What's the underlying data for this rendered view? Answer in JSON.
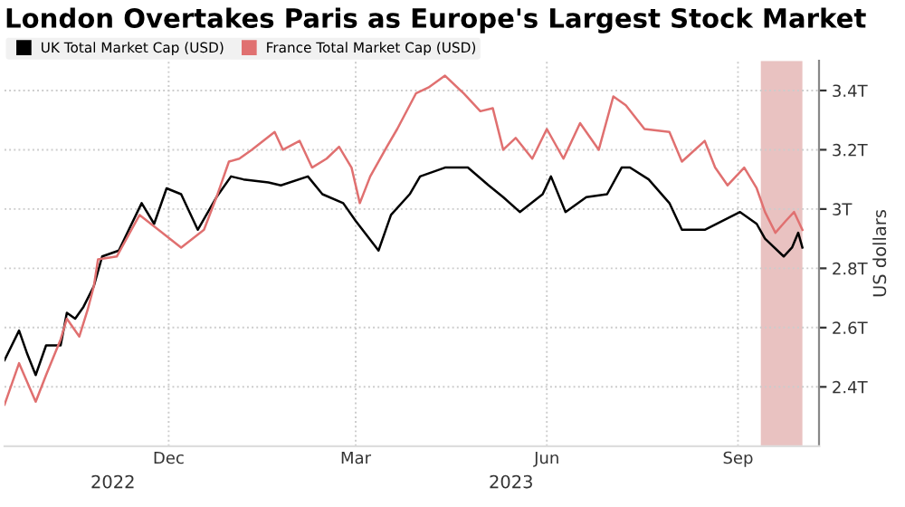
{
  "chart_data": {
    "type": "line",
    "title": "London Overtakes Paris as Europe's Largest Stock Market",
    "ylabel": "US dollars",
    "annotations": [
      "2022",
      "2023"
    ],
    "xlim": [
      "2022-09-13",
      "2023-10-10"
    ],
    "xticks": [
      {
        "value": "2022-12-01",
        "label": "Dec"
      },
      {
        "value": "2023-03-01",
        "label": "Mar"
      },
      {
        "value": "2023-06-01",
        "label": "Jun"
      },
      {
        "value": "2023-09-01",
        "label": "Sep"
      }
    ],
    "ylim": [
      2.2,
      3.5
    ],
    "yticks": [
      {
        "value": 2.4,
        "label": "2.4T"
      },
      {
        "value": 2.6,
        "label": "2.6T"
      },
      {
        "value": 2.8,
        "label": "2.8T"
      },
      {
        "value": 3.0,
        "label": "3T"
      },
      {
        "value": 3.2,
        "label": "3.2T"
      },
      {
        "value": 3.4,
        "label": "3.4T"
      }
    ],
    "grid": true,
    "legend": "top left",
    "marker": "none",
    "line_style": "solid",
    "bands": [
      {
        "axis": "x",
        "from": "2023-09-12",
        "to": "2023-10-02",
        "color": "#c0504d"
      }
    ],
    "series": [
      {
        "name": "UK Total Market Cap (USD)",
        "color": "#000000",
        "x": [
          "2022-09-13",
          "2022-09-20",
          "2022-09-24",
          "2022-09-28",
          "2022-10-03",
          "2022-10-10",
          "2022-10-13",
          "2022-10-17",
          "2022-10-21",
          "2022-10-26",
          "2022-10-30",
          "2022-11-07",
          "2022-11-18",
          "2022-11-24",
          "2022-11-30",
          "2022-12-07",
          "2022-12-15",
          "2022-12-24",
          "2022-12-31",
          "2023-01-06",
          "2023-01-18",
          "2023-01-24",
          "2023-02-06",
          "2023-02-13",
          "2023-02-23",
          "2023-03-01",
          "2023-03-12",
          "2023-03-18",
          "2023-03-27",
          "2023-04-01",
          "2023-04-13",
          "2023-04-24",
          "2023-05-04",
          "2023-05-11",
          "2023-05-19",
          "2023-05-30",
          "2023-06-03",
          "2023-06-10",
          "2023-06-20",
          "2023-06-30",
          "2023-07-07",
          "2023-07-11",
          "2023-07-20",
          "2023-07-30",
          "2023-08-05",
          "2023-08-16",
          "2023-09-02",
          "2023-09-10",
          "2023-09-14",
          "2023-09-23",
          "2023-09-27",
          "2023-09-30",
          "2023-10-02"
        ],
        "values": [
          2.49,
          2.59,
          2.51,
          2.44,
          2.54,
          2.54,
          2.65,
          2.63,
          2.67,
          2.74,
          2.84,
          2.86,
          3.02,
          2.95,
          3.07,
          3.05,
          2.93,
          3.04,
          3.11,
          3.1,
          3.09,
          3.08,
          3.11,
          3.05,
          3.02,
          2.96,
          2.86,
          2.98,
          3.05,
          3.11,
          3.14,
          3.14,
          3.08,
          3.04,
          2.99,
          3.05,
          3.11,
          2.99,
          3.04,
          3.05,
          3.14,
          3.14,
          3.1,
          3.02,
          2.93,
          2.93,
          2.99,
          2.95,
          2.9,
          2.84,
          2.87,
          2.92,
          2.87
        ]
      },
      {
        "name": "France Total Market Cap (USD)",
        "color": "#e07070",
        "x": [
          "2022-09-13",
          "2022-09-20",
          "2022-09-28",
          "2022-10-03",
          "2022-10-10",
          "2022-10-13",
          "2022-10-19",
          "2022-10-23",
          "2022-10-26",
          "2022-10-28",
          "2022-11-06",
          "2022-11-17",
          "2022-12-07",
          "2022-12-18",
          "2022-12-24",
          "2022-12-30",
          "2023-01-04",
          "2023-01-10",
          "2023-01-21",
          "2023-01-25",
          "2023-02-02",
          "2023-02-08",
          "2023-02-15",
          "2023-02-21",
          "2023-02-27",
          "2023-03-03",
          "2023-03-08",
          "2023-03-16",
          "2023-03-21",
          "2023-03-30",
          "2023-04-05",
          "2023-04-13",
          "2023-04-22",
          "2023-04-30",
          "2023-05-06",
          "2023-05-11",
          "2023-05-17",
          "2023-05-25",
          "2023-06-01",
          "2023-06-09",
          "2023-06-17",
          "2023-06-26",
          "2023-07-03",
          "2023-07-09",
          "2023-07-18",
          "2023-07-30",
          "2023-08-05",
          "2023-08-16",
          "2023-08-21",
          "2023-08-27",
          "2023-09-04",
          "2023-09-10",
          "2023-09-14",
          "2023-09-19",
          "2023-09-24",
          "2023-09-28",
          "2023-10-02"
        ],
        "values": [
          2.34,
          2.48,
          2.35,
          2.44,
          2.56,
          2.63,
          2.57,
          2.66,
          2.74,
          2.83,
          2.84,
          2.98,
          2.87,
          2.93,
          3.04,
          3.16,
          3.17,
          3.2,
          3.26,
          3.2,
          3.23,
          3.14,
          3.17,
          3.21,
          3.14,
          3.02,
          3.11,
          3.21,
          3.27,
          3.39,
          3.41,
          3.45,
          3.39,
          3.33,
          3.34,
          3.2,
          3.24,
          3.17,
          3.27,
          3.17,
          3.29,
          3.2,
          3.38,
          3.35,
          3.27,
          3.26,
          3.16,
          3.23,
          3.14,
          3.08,
          3.14,
          3.07,
          2.99,
          2.92,
          2.96,
          2.99,
          2.93
        ]
      }
    ]
  }
}
